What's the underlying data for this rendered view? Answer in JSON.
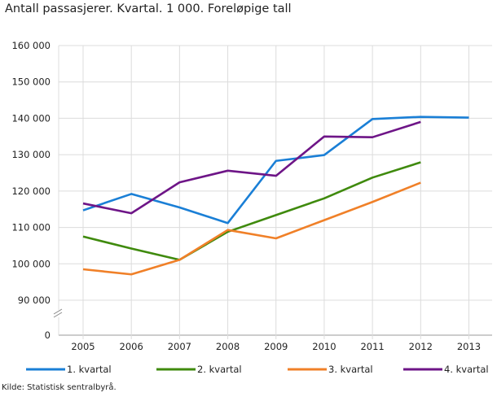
{
  "chart_data": {
    "type": "line",
    "title": "Antall passasjerer. Kvartal. 1 000. Foreløpige tall",
    "xlabel": "",
    "ylabel": "",
    "x": [
      "2005",
      "2006",
      "2007",
      "2008",
      "2009",
      "2010",
      "2011",
      "2012",
      "2013"
    ],
    "y_ticks": [
      "0",
      "90 000",
      "100 000",
      "110 000",
      "120 000",
      "130 000",
      "140 000",
      "150 000",
      "160 000"
    ],
    "ylim": [
      0,
      160000
    ],
    "y_axis_break": true,
    "grid": true,
    "legend": "bottom",
    "series": [
      {
        "name": "1. kvartal",
        "color": "#1a7fd6",
        "values": [
          114700,
          119200,
          115500,
          111200,
          128300,
          129900,
          139800,
          140400,
          140200
        ]
      },
      {
        "name": "2. kvartal",
        "color": "#3f8a0d",
        "values": [
          107500,
          104200,
          101100,
          108800,
          113400,
          118000,
          123700,
          127900,
          null
        ]
      },
      {
        "name": "3. kvartal",
        "color": "#f08028",
        "values": [
          98500,
          97100,
          101100,
          109300,
          107000,
          112000,
          117000,
          122300,
          null
        ]
      },
      {
        "name": "4. kvartal",
        "color": "#6e1587",
        "values": [
          116600,
          113900,
          122400,
          125600,
          124200,
          135000,
          134800,
          139000,
          null
        ]
      }
    ]
  },
  "source": "Kilde: Statistisk sentralbyrå."
}
